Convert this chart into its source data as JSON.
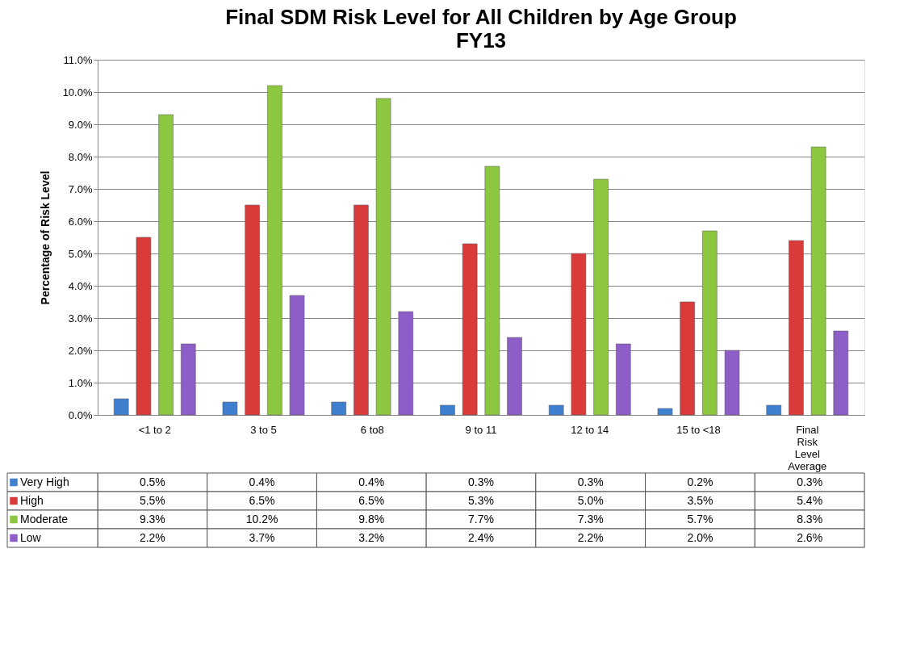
{
  "chart_data": {
    "type": "bar",
    "title": "Final SDM Risk Level for All Children by Age Group",
    "subtitle": "FY13",
    "ylabel": "Percentage of Risk Level",
    "categories": [
      "<1 to 2",
      "3 to 5",
      "6 to8",
      "9 to 11",
      "12 to 14",
      "15 to <18",
      "Final Risk Level Average"
    ],
    "series": [
      {
        "name": "Very High",
        "color": "#3f7fcf",
        "values": [
          0.5,
          0.4,
          0.4,
          0.3,
          0.3,
          0.2,
          0.3
        ],
        "value_labels": [
          "0.5%",
          "0.4%",
          "0.4%",
          "0.3%",
          "0.3%",
          "0.2%",
          "0.3%"
        ]
      },
      {
        "name": "High",
        "color": "#d93a3a",
        "values": [
          5.5,
          6.5,
          6.5,
          5.3,
          5.0,
          3.5,
          5.4
        ],
        "value_labels": [
          "5.5%",
          "6.5%",
          "6.5%",
          "5.3%",
          "5.0%",
          "3.5%",
          "5.4%"
        ]
      },
      {
        "name": "Moderate",
        "color": "#8dc63f",
        "values": [
          9.3,
          10.2,
          9.8,
          7.7,
          7.3,
          5.7,
          8.3
        ],
        "value_labels": [
          "9.3%",
          "10.2%",
          "9.8%",
          "7.7%",
          "7.3%",
          "5.7%",
          "8.3%"
        ]
      },
      {
        "name": "Low",
        "color": "#8e5ec8",
        "values": [
          2.2,
          3.7,
          3.2,
          2.4,
          2.2,
          2.0,
          2.6
        ],
        "value_labels": [
          "2.2%",
          "3.7%",
          "3.2%",
          "2.4%",
          "2.2%",
          "2.0%",
          "2.6%"
        ]
      }
    ],
    "ylim": [
      0,
      11
    ],
    "yticks": [
      {
        "value": 0,
        "label": "0.0%"
      },
      {
        "value": 1,
        "label": "1.0%"
      },
      {
        "value": 2,
        "label": "2.0%"
      },
      {
        "value": 3,
        "label": "3.0%"
      },
      {
        "value": 4,
        "label": "4.0%"
      },
      {
        "value": 5,
        "label": "5.0%"
      },
      {
        "value": 6,
        "label": "6.0%"
      },
      {
        "value": 7,
        "label": "7.0%"
      },
      {
        "value": 8,
        "label": "8.0%"
      },
      {
        "value": 9,
        "label": "9.0%"
      },
      {
        "value": 10,
        "label": "10.0%"
      },
      {
        "value": 11,
        "label": "11.0%"
      }
    ],
    "grid": "y",
    "legend": "bottom left"
  }
}
